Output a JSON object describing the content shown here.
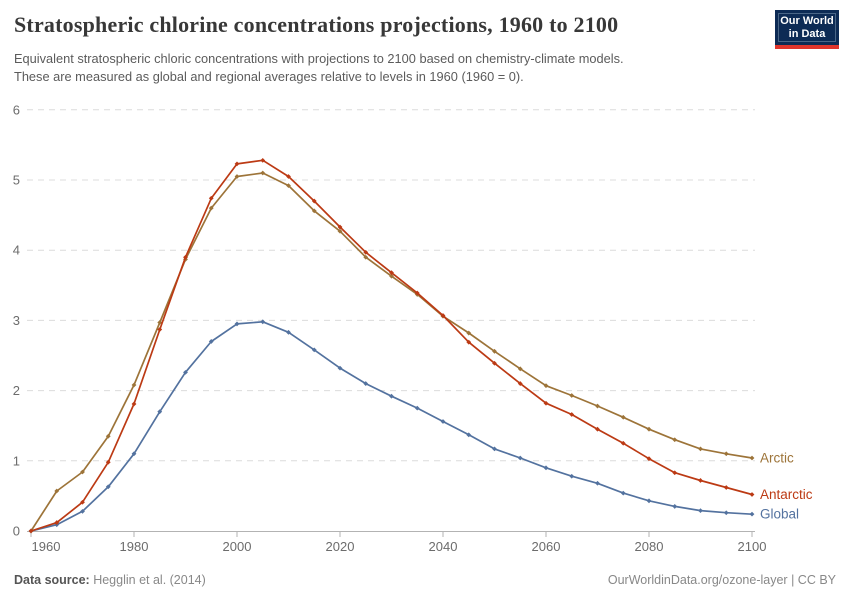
{
  "header": {
    "title": "Stratospheric chlorine concentrations projections, 1960 to 2100",
    "subtitle": "Equivalent stratospheric chloric concentrations with projections to 2100 based on chemistry-climate models.\nThese are measured as global and regional averages relative to levels in 1960 (1960 = 0)."
  },
  "logo": {
    "line1": "Our World",
    "line2": "in Data",
    "bg_color": "#0d2b55",
    "stripe_color": "#e0352c"
  },
  "footer": {
    "source_label": "Data source:",
    "source_value": " Hegglin et al. (2014)",
    "link": "OurWorldinData.org/ozone-layer",
    "separator": " | ",
    "license": "CC BY"
  },
  "chart_data": {
    "type": "line",
    "title": "Stratospheric chlorine concentrations projections, 1960 to 2100",
    "xlabel": "",
    "ylabel": "",
    "ylim": [
      0,
      6
    ],
    "y_ticks": [
      0,
      1,
      2,
      3,
      4,
      5,
      6
    ],
    "x_ticks": [
      1960,
      1980,
      2000,
      2020,
      2040,
      2060,
      2080,
      2100
    ],
    "grid": "horizontal-dashed",
    "legend": "end-of-line-labels",
    "marker": "diamond",
    "x": [
      1960,
      1965,
      1970,
      1975,
      1980,
      1985,
      1990,
      1995,
      2000,
      2005,
      2010,
      2015,
      2020,
      2025,
      2030,
      2035,
      2040,
      2045,
      2050,
      2055,
      2060,
      2065,
      2070,
      2075,
      2080,
      2085,
      2090,
      2095,
      2100
    ],
    "series": [
      {
        "name": "Global",
        "color": "#53729f",
        "values": [
          0,
          0.09,
          0.28,
          0.63,
          1.1,
          1.7,
          2.26,
          2.7,
          2.95,
          2.98,
          2.83,
          2.58,
          2.32,
          2.1,
          1.92,
          1.75,
          1.56,
          1.37,
          1.17,
          1.04,
          0.9,
          0.78,
          0.68,
          0.54,
          0.43,
          0.35,
          0.29,
          0.26,
          0.24
        ]
      },
      {
        "name": "Arctic",
        "color": "#9d7439",
        "values": [
          0,
          0.57,
          0.84,
          1.35,
          2.08,
          2.97,
          3.87,
          4.6,
          5.05,
          5.1,
          4.92,
          4.56,
          4.27,
          3.9,
          3.63,
          3.37,
          3.06,
          2.82,
          2.56,
          2.31,
          2.07,
          1.93,
          1.78,
          1.62,
          1.45,
          1.3,
          1.17,
          1.1,
          1.04
        ]
      },
      {
        "name": "Antarctic",
        "color": "#bc3a14",
        "values": [
          0,
          0.12,
          0.41,
          0.98,
          1.81,
          2.87,
          3.9,
          4.74,
          5.23,
          5.28,
          5.05,
          4.7,
          4.33,
          3.97,
          3.68,
          3.39,
          3.07,
          2.69,
          2.39,
          2.1,
          1.82,
          1.66,
          1.45,
          1.25,
          1.03,
          0.83,
          0.72,
          0.62,
          0.52
        ]
      }
    ]
  }
}
